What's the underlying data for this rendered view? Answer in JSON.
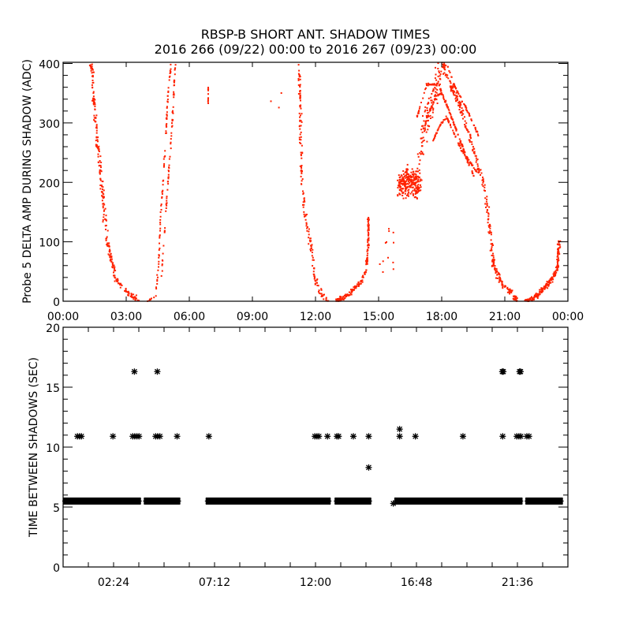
{
  "colors": {
    "data_red": "#ff2200",
    "axis": "#000000",
    "star": "#000000"
  },
  "chart_data": [
    {
      "type": "scatter",
      "title": "RBSP-B SHORT ANT. SHADOW TIMES",
      "subtitle": "2016 266 (09/22) 00:00 to 2016 267 (09/23) 00:00",
      "xlabel": "",
      "ylabel": "Probe 5 DELTA AMP DURING SHADOW (ADC)",
      "xlim_hours": [
        0,
        24
      ],
      "ylim": [
        0,
        402
      ],
      "xticks": [
        {
          "h": 0,
          "label": "00:00"
        },
        {
          "h": 3,
          "label": "03:00"
        },
        {
          "h": 6,
          "label": "06:00"
        },
        {
          "h": 9,
          "label": "09:00"
        },
        {
          "h": 12,
          "label": "12:00"
        },
        {
          "h": 15,
          "label": "15:00"
        },
        {
          "h": 18,
          "label": "18:00"
        },
        {
          "h": 21,
          "label": "21:00"
        },
        {
          "h": 24,
          "label": "00:00"
        }
      ],
      "yticks": [
        {
          "v": 0,
          "label": "0"
        },
        {
          "v": 100,
          "label": "100"
        },
        {
          "v": 200,
          "label": "200"
        },
        {
          "v": 300,
          "label": "300"
        },
        {
          "v": 400,
          "label": "400"
        }
      ],
      "grid": false,
      "traces": [
        {
          "n": 260,
          "jh": 0.12,
          "jv": 8,
          "pts": [
            [
              1.31,
              400
            ],
            [
              1.5,
              300
            ],
            [
              1.8,
              200
            ],
            [
              2.06,
              100
            ],
            [
              2.44,
              40
            ],
            [
              3.0,
              15
            ],
            [
              3.56,
              0
            ]
          ]
        },
        {
          "n": 90,
          "jh": 0.03,
          "jv": 4,
          "pts": [
            [
              3.94,
              0
            ],
            [
              4.35,
              8
            ],
            [
              4.5,
              60
            ],
            [
              4.61,
              150
            ],
            [
              4.8,
              250
            ],
            [
              4.95,
              350
            ],
            [
              5.1,
              400
            ]
          ]
        },
        {
          "n": 70,
          "jh": 0.03,
          "jv": 4,
          "pts": [
            [
              4.6,
              20
            ],
            [
              4.75,
              100
            ],
            [
              4.95,
              200
            ],
            [
              5.15,
              300
            ],
            [
              5.3,
              400
            ]
          ]
        },
        {
          "n": 160,
          "jh": 0.1,
          "jv": 8,
          "pts": [
            [
              11.18,
              400
            ],
            [
              11.25,
              300
            ],
            [
              11.33,
              200
            ],
            [
              11.44,
              150
            ],
            [
              11.7,
              100
            ],
            [
              11.93,
              40
            ],
            [
              12.19,
              15
            ],
            [
              12.56,
              0
            ]
          ]
        },
        {
          "n": 170,
          "jh": 0.06,
          "jv": 6,
          "pts": [
            [
              12.94,
              0
            ],
            [
              13.5,
              10
            ],
            [
              14.06,
              30
            ],
            [
              14.36,
              50
            ],
            [
              14.48,
              100
            ],
            [
              14.48,
              140
            ]
          ]
        },
        {
          "n": 260,
          "jh": 0.25,
          "jv": 35,
          "pts": [
            [
              15.95,
              200
            ],
            [
              16.9,
              200
            ]
          ]
        },
        {
          "n": 120,
          "jh": 0.3,
          "jv": 40,
          "pts": [
            [
              16.9,
              250
            ],
            [
              17.4,
              330
            ],
            [
              17.9,
              390
            ]
          ]
        },
        {
          "n": 280,
          "jh": 0.12,
          "jv": 10,
          "pts": [
            [
              18.0,
              400
            ],
            [
              18.8,
              330
            ],
            [
              19.5,
              250
            ],
            [
              19.95,
              200
            ],
            [
              20.25,
              120
            ],
            [
              20.44,
              60
            ],
            [
              20.81,
              30
            ],
            [
              21.38,
              10
            ],
            [
              21.56,
              0
            ]
          ]
        },
        {
          "n": 90,
          "jh": 0.02,
          "jv": 3,
          "pts": [
            [
              16.8,
              310
            ],
            [
              17.25,
              365
            ],
            [
              17.81,
              365
            ],
            [
              18.75,
              280
            ],
            [
              19.13,
              240
            ],
            [
              19.5,
              210
            ]
          ]
        },
        {
          "n": 80,
          "jh": 0.02,
          "jv": 3,
          "pts": [
            [
              17.25,
              310
            ],
            [
              17.7,
              345
            ],
            [
              18.0,
              350
            ],
            [
              18.75,
              280
            ],
            [
              19.31,
              225
            ]
          ]
        },
        {
          "n": 80,
          "jh": 0.02,
          "jv": 3,
          "pts": [
            [
              17.55,
              270
            ],
            [
              17.93,
              300
            ],
            [
              18.19,
              310
            ],
            [
              18.9,
              255
            ],
            [
              19.69,
              215
            ]
          ]
        },
        {
          "n": 60,
          "jh": 0.02,
          "jv": 3,
          "pts": [
            [
              18.2,
              400
            ],
            [
              18.6,
              360
            ],
            [
              19.2,
              320
            ],
            [
              19.7,
              280
            ]
          ]
        },
        {
          "n": 200,
          "jh": 0.08,
          "jv": 6,
          "pts": [
            [
              21.94,
              0
            ],
            [
              22.5,
              10
            ],
            [
              23.06,
              30
            ],
            [
              23.44,
              50
            ],
            [
              23.55,
              100
            ]
          ]
        },
        {
          "n": 10,
          "jh": 0.01,
          "jv": 40,
          "pts": [
            [
              6.86,
              340
            ],
            [
              6.86,
              360
            ]
          ]
        },
        {
          "n": 3,
          "jh": 0.5,
          "jv": 60,
          "pts": [
            [
              10.05,
              345
            ],
            [
              10.05,
              345
            ]
          ]
        },
        {
          "n": 12,
          "jh": 0.6,
          "jv": 40,
          "pts": [
            [
              15.2,
              60
            ],
            [
              15.6,
              120
            ]
          ]
        }
      ]
    },
    {
      "type": "scatter",
      "xlabel": "",
      "ylabel": "TIME BETWEEN SHADOWS (SEC)",
      "xlim_hours": [
        0,
        24
      ],
      "ylim": [
        0,
        20
      ],
      "xtick_step_hours": 1.2,
      "xticks": [
        {
          "h": 2.4,
          "label": "02:24"
        },
        {
          "h": 7.2,
          "label": "07:12"
        },
        {
          "h": 12.0,
          "label": "12:00"
        },
        {
          "h": 16.8,
          "label": "16:48"
        },
        {
          "h": 21.6,
          "label": "21:36"
        }
      ],
      "yticks": [
        {
          "v": 0,
          "label": "0"
        },
        {
          "v": 5,
          "label": "5"
        },
        {
          "v": 10,
          "label": "10"
        },
        {
          "v": 15,
          "label": "15"
        },
        {
          "v": 20,
          "label": "20"
        }
      ],
      "grid": false,
      "band_value": 5.5,
      "band_segments_hours": [
        [
          0.0,
          3.7
        ],
        [
          3.84,
          5.57
        ],
        [
          6.78,
          12.72
        ],
        [
          12.91,
          14.65
        ],
        [
          15.75,
          21.84
        ],
        [
          21.98,
          23.76
        ]
      ],
      "points": [
        [
          0.68,
          10.9
        ],
        [
          0.78,
          10.9
        ],
        [
          0.87,
          10.9
        ],
        [
          2.37,
          10.9
        ],
        [
          3.31,
          10.9
        ],
        [
          3.41,
          10.9
        ],
        [
          3.51,
          10.9
        ],
        [
          3.61,
          10.9
        ],
        [
          4.4,
          10.9
        ],
        [
          4.5,
          10.9
        ],
        [
          4.6,
          10.9
        ],
        [
          5.42,
          10.9
        ],
        [
          6.93,
          10.9
        ],
        [
          11.97,
          10.9
        ],
        [
          12.07,
          10.9
        ],
        [
          12.16,
          10.9
        ],
        [
          12.57,
          10.9
        ],
        [
          13.02,
          10.9
        ],
        [
          13.1,
          10.9
        ],
        [
          13.8,
          10.9
        ],
        [
          14.53,
          10.9
        ],
        [
          16.0,
          10.9
        ],
        [
          16.75,
          10.9
        ],
        [
          19.01,
          10.9
        ],
        [
          20.9,
          10.9
        ],
        [
          21.57,
          10.9
        ],
        [
          21.67,
          10.9
        ],
        [
          21.76,
          10.9
        ],
        [
          22.05,
          10.9
        ],
        [
          22.15,
          10.9
        ],
        [
          3.39,
          16.3
        ],
        [
          4.48,
          16.3
        ],
        [
          20.88,
          16.3
        ],
        [
          20.93,
          16.3
        ],
        [
          21.7,
          16.3
        ],
        [
          21.75,
          16.3
        ],
        [
          16.0,
          11.5
        ],
        [
          14.53,
          8.3
        ],
        [
          15.7,
          5.3
        ]
      ]
    }
  ]
}
